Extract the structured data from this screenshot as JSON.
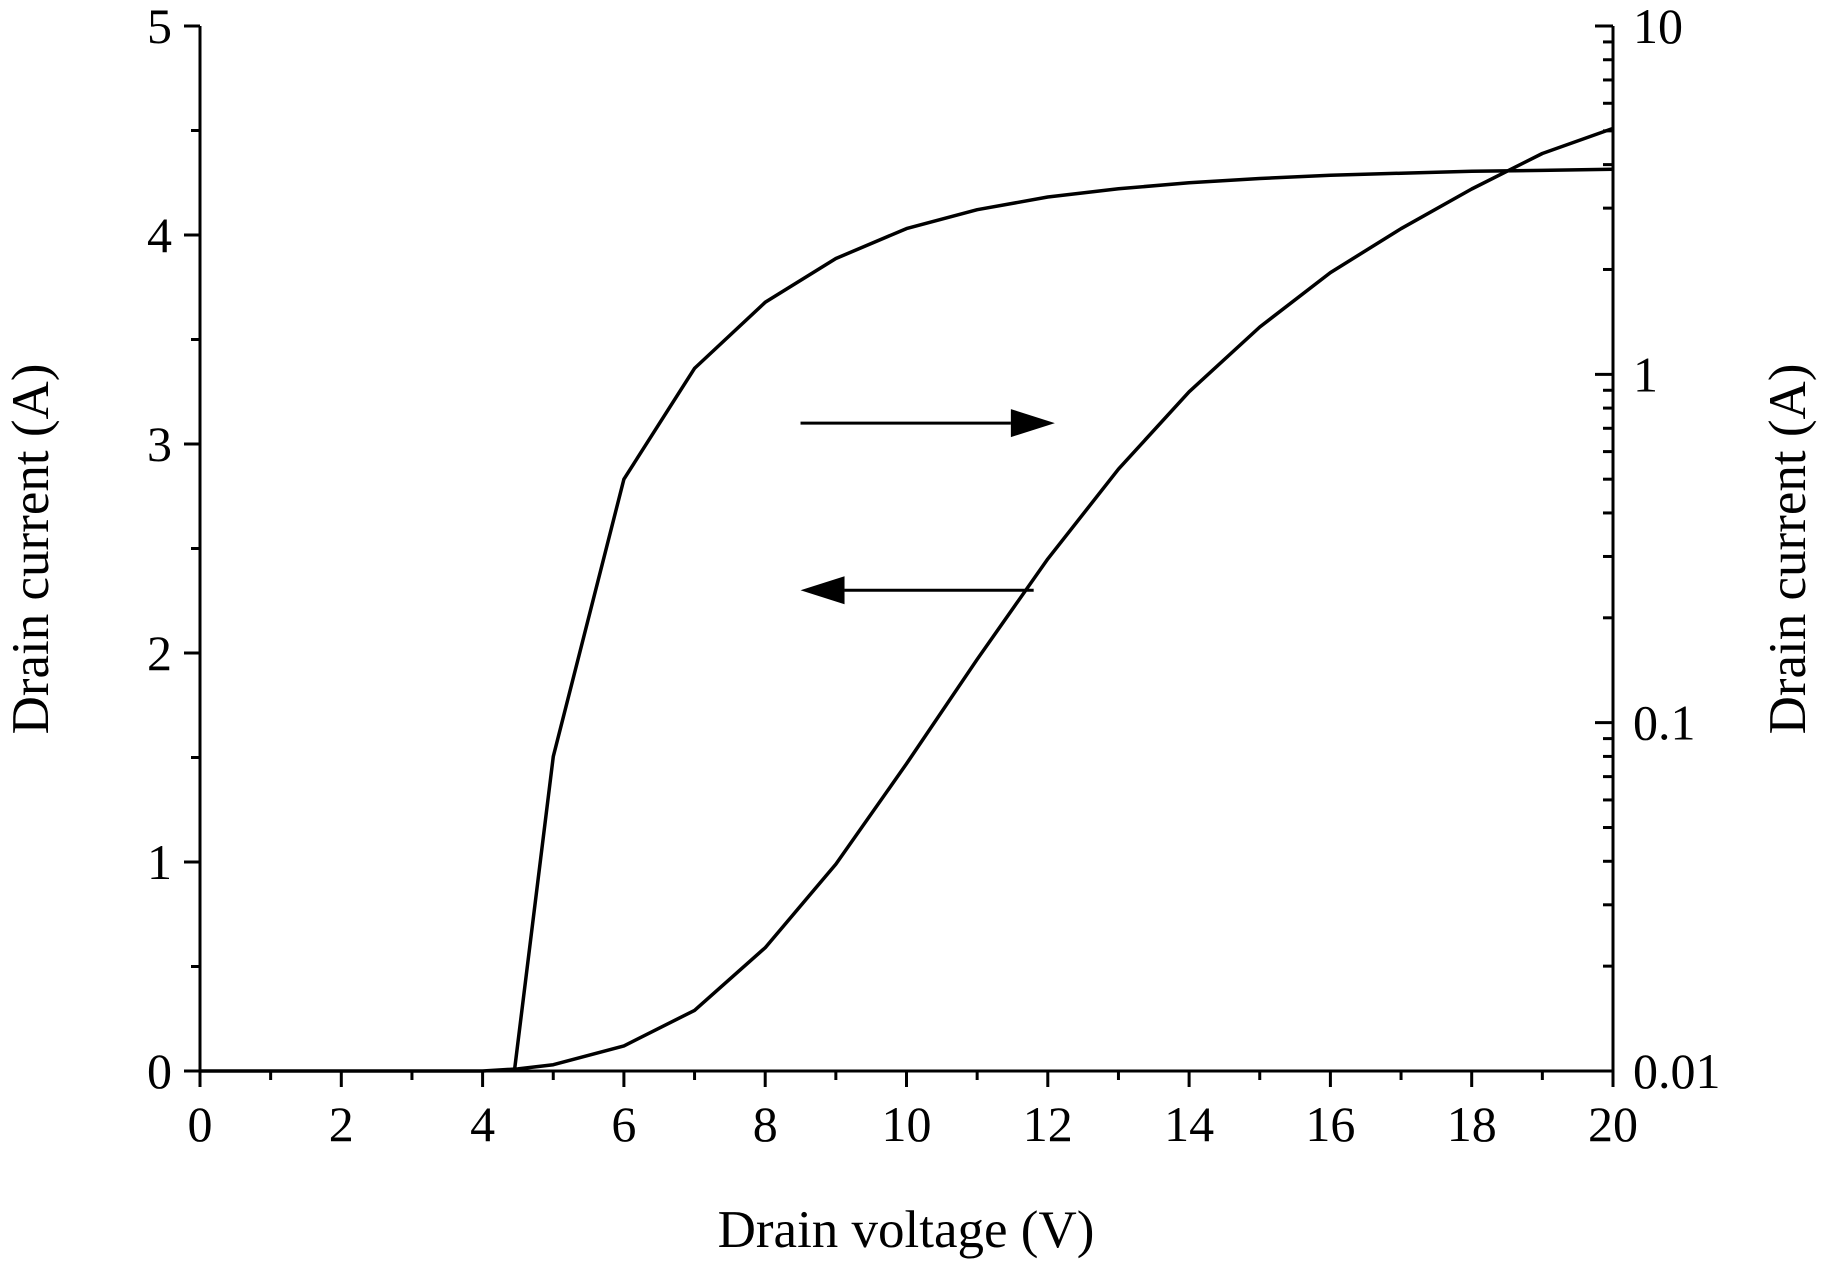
{
  "chart_data": {
    "type": "line",
    "xlabel": "Drain voltage (V)",
    "ylabel_left": "Drain current (A)",
    "ylabel_right": "Drain current (A)",
    "xlim": [
      0,
      20
    ],
    "ylim_left": [
      0,
      5
    ],
    "ylim_right": [
      0.01,
      10
    ],
    "right_axis_scale": "log",
    "grid": false,
    "x_ticks": [
      {
        "value": 0,
        "label": "0"
      },
      {
        "value": 2,
        "label": "2"
      },
      {
        "value": 4,
        "label": "4"
      },
      {
        "value": 6,
        "label": "6"
      },
      {
        "value": 8,
        "label": "8"
      },
      {
        "value": 10,
        "label": "10"
      },
      {
        "value": 12,
        "label": "12"
      },
      {
        "value": 14,
        "label": "14"
      },
      {
        "value": 16,
        "label": "16"
      },
      {
        "value": 18,
        "label": "18"
      },
      {
        "value": 20,
        "label": "20"
      }
    ],
    "y_left_ticks": [
      {
        "value": 0,
        "label": "0"
      },
      {
        "value": 1,
        "label": "1"
      },
      {
        "value": 2,
        "label": "2"
      },
      {
        "value": 3,
        "label": "3"
      },
      {
        "value": 4,
        "label": "4"
      },
      {
        "value": 5,
        "label": "5"
      }
    ],
    "y_right_ticks": [
      {
        "value": 0.01,
        "label": "0.01"
      },
      {
        "value": 0.1,
        "label": "0.1"
      },
      {
        "value": 1,
        "label": "1"
      },
      {
        "value": 10,
        "label": "10"
      }
    ],
    "series": [
      {
        "axis": "left",
        "x": [
          0,
          1,
          2,
          3,
          4,
          4.5,
          5,
          6,
          7,
          8,
          9,
          10,
          11,
          12,
          13,
          14,
          15,
          16,
          17,
          18,
          19,
          20
        ],
        "y": [
          0.0,
          0.0,
          0.0,
          0.0,
          0.0,
          0.01,
          0.03,
          0.12,
          0.29,
          0.59,
          0.99,
          1.47,
          1.97,
          2.45,
          2.88,
          3.25,
          3.56,
          3.82,
          4.03,
          4.22,
          4.39,
          4.51
        ]
      },
      {
        "axis": "right",
        "x": [
          4.45,
          5,
          6,
          7,
          8,
          9,
          10,
          11,
          12,
          13,
          14,
          15,
          16,
          17,
          18,
          19,
          20
        ],
        "y": [
          0.01,
          0.08,
          0.5,
          1.04,
          1.61,
          2.15,
          2.62,
          2.97,
          3.23,
          3.41,
          3.55,
          3.65,
          3.73,
          3.78,
          3.83,
          3.85,
          3.88
        ]
      }
    ],
    "annotations": [
      {
        "type": "arrow",
        "direction": "right",
        "points_to": "right-axis",
        "x_from": 8.5,
        "x_to": 12.1,
        "y_left": 3.1
      },
      {
        "type": "arrow",
        "direction": "left",
        "points_to": "left-axis",
        "x_from": 11.8,
        "x_to": 8.5,
        "y_left": 2.3
      }
    ]
  }
}
